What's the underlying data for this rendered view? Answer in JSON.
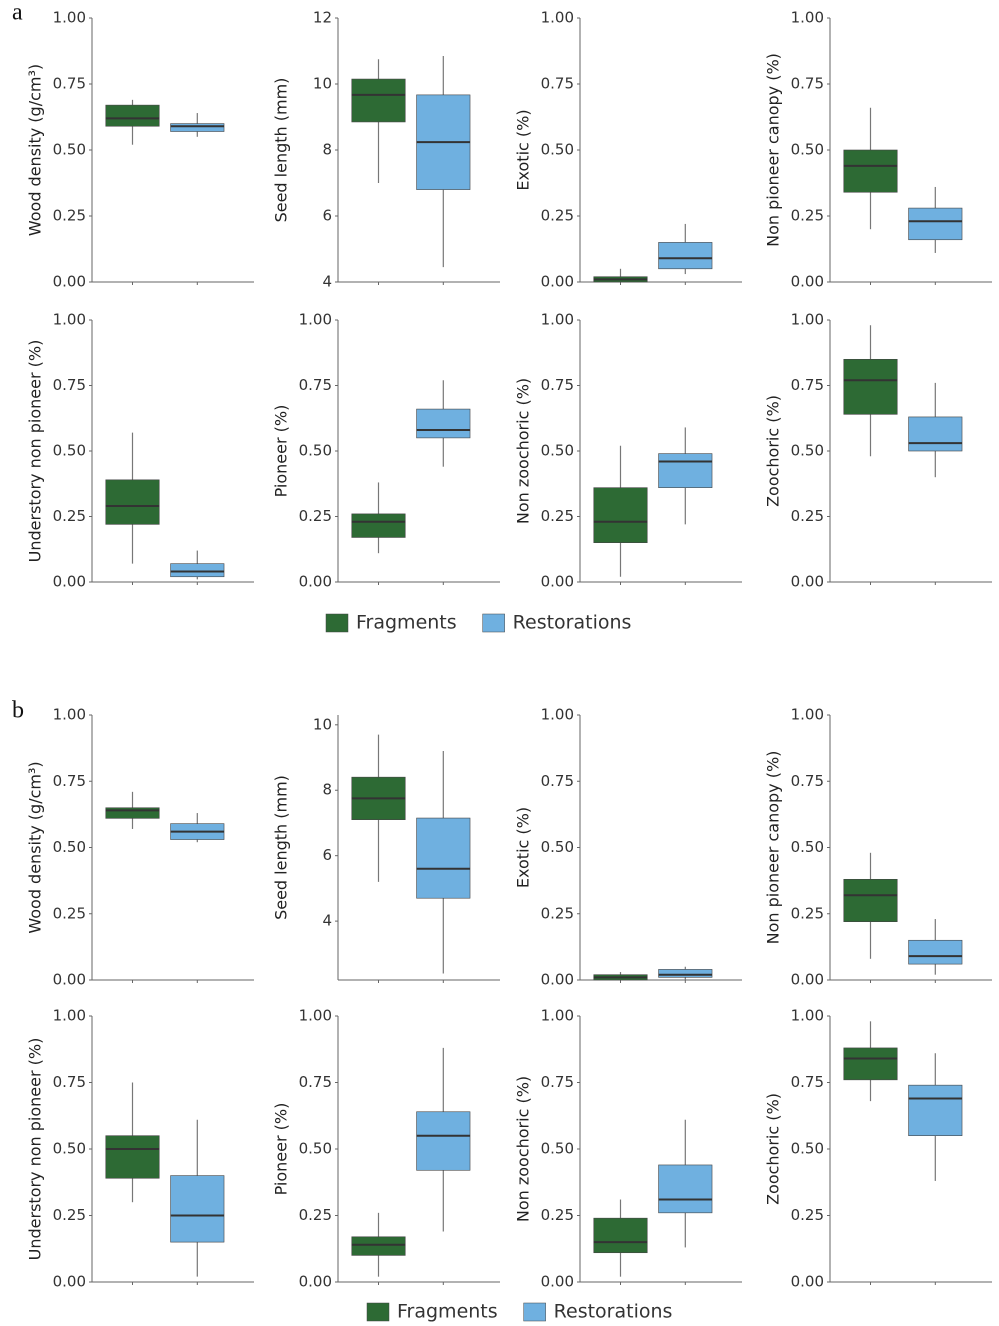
{
  "panel_labels": [
    "a",
    "b"
  ],
  "chart_data": [
    {
      "type": "box",
      "ylabel": "Wood density (g/cm³)",
      "ylim": [
        0,
        1
      ],
      "yticks": [
        {
          "value": 0,
          "label": "0.00"
        },
        {
          "value": 0.25,
          "label": "0.25"
        },
        {
          "value": 0.5,
          "label": "0.50"
        },
        {
          "value": 0.75,
          "label": "0.75"
        },
        {
          "value": 1,
          "label": "1.00"
        }
      ],
      "series": [
        {
          "name": "Fragments",
          "color": "#2d6a34",
          "min": 0.52,
          "q1": 0.59,
          "median": 0.62,
          "q3": 0.67,
          "max": 0.69
        },
        {
          "name": "Restorations",
          "color": "#6fb0e0",
          "min": 0.55,
          "q1": 0.57,
          "median": 0.59,
          "q3": 0.6,
          "max": 0.64
        }
      ]
    },
    {
      "type": "box",
      "ylabel": "Seed length (mm)",
      "ylim": [
        4,
        12
      ],
      "yticks": [
        4,
        6,
        8,
        10,
        12
      ],
      "series": [
        {
          "name": "Fragments",
          "color": "#2d6a34",
          "min": 7.0,
          "q1": 8.85,
          "median": 9.67,
          "q3": 10.15,
          "max": 10.75
        },
        {
          "name": "Restorations",
          "color": "#6fb0e0",
          "min": 4.45,
          "q1": 6.8,
          "median": 8.24,
          "q3": 9.67,
          "max": 10.85
        }
      ]
    },
    {
      "type": "box",
      "ylabel": "Exotic (%)",
      "ylim": [
        0,
        1
      ],
      "yticks": [
        {
          "value": 0,
          "label": "0.00"
        },
        {
          "value": 0.25,
          "label": "0.25"
        },
        {
          "value": 0.5,
          "label": "0.50"
        },
        {
          "value": 0.75,
          "label": "0.75"
        },
        {
          "value": 1,
          "label": "1.00"
        }
      ],
      "series": [
        {
          "name": "Fragments",
          "color": "#2d6a34",
          "min": 0,
          "q1": 0,
          "median": 0.01,
          "q3": 0.02,
          "max": 0.05
        },
        {
          "name": "Restorations",
          "color": "#6fb0e0",
          "min": 0.03,
          "q1": 0.05,
          "median": 0.09,
          "q3": 0.15,
          "max": 0.22
        }
      ]
    },
    {
      "type": "box",
      "ylabel": "Non pioneer canopy (%)",
      "ylim": [
        0,
        1
      ],
      "yticks": [
        {
          "value": 0,
          "label": "0.00"
        },
        {
          "value": 0.25,
          "label": "0.25"
        },
        {
          "value": 0.5,
          "label": "0.50"
        },
        {
          "value": 0.75,
          "label": "0.75"
        },
        {
          "value": 1,
          "label": "1.00"
        }
      ],
      "series": [
        {
          "name": "Fragments",
          "color": "#2d6a34",
          "min": 0.2,
          "q1": 0.34,
          "median": 0.44,
          "q3": 0.5,
          "max": 0.66
        },
        {
          "name": "Restorations",
          "color": "#6fb0e0",
          "min": 0.11,
          "q1": 0.16,
          "median": 0.23,
          "q3": 0.28,
          "max": 0.36
        }
      ]
    },
    {
      "type": "box",
      "ylabel": "Understory non pioneer (%)",
      "ylim": [
        0,
        1
      ],
      "yticks": [
        {
          "value": 0,
          "label": "0.00"
        },
        {
          "value": 0.25,
          "label": "0.25"
        },
        {
          "value": 0.5,
          "label": "0.50"
        },
        {
          "value": 0.75,
          "label": "0.75"
        },
        {
          "value": 1,
          "label": "1.00"
        }
      ],
      "series": [
        {
          "name": "Fragments",
          "color": "#2d6a34",
          "min": 0.07,
          "q1": 0.22,
          "median": 0.29,
          "q3": 0.39,
          "max": 0.57
        },
        {
          "name": "Restorations",
          "color": "#6fb0e0",
          "min": 0.01,
          "q1": 0.02,
          "median": 0.04,
          "q3": 0.07,
          "max": 0.12
        }
      ]
    },
    {
      "type": "box",
      "ylabel": "Pioneer (%)",
      "ylim": [
        0,
        1
      ],
      "yticks": [
        {
          "value": 0,
          "label": "0.00"
        },
        {
          "value": 0.25,
          "label": "0.25"
        },
        {
          "value": 0.5,
          "label": "0.50"
        },
        {
          "value": 0.75,
          "label": "0.75"
        },
        {
          "value": 1,
          "label": "1.00"
        }
      ],
      "series": [
        {
          "name": "Fragments",
          "color": "#2d6a34",
          "min": 0.11,
          "q1": 0.17,
          "median": 0.23,
          "q3": 0.26,
          "max": 0.38
        },
        {
          "name": "Restorations",
          "color": "#6fb0e0",
          "min": 0.44,
          "q1": 0.55,
          "median": 0.58,
          "q3": 0.66,
          "max": 0.77
        }
      ]
    },
    {
      "type": "box",
      "ylabel": "Non zoochoric (%)",
      "ylim": [
        0,
        1
      ],
      "yticks": [
        {
          "value": 0,
          "label": "0.00"
        },
        {
          "value": 0.25,
          "label": "0.25"
        },
        {
          "value": 0.5,
          "label": "0.50"
        },
        {
          "value": 0.75,
          "label": "0.75"
        },
        {
          "value": 1,
          "label": "1.00"
        }
      ],
      "series": [
        {
          "name": "Fragments",
          "color": "#2d6a34",
          "min": 0.02,
          "q1": 0.15,
          "median": 0.23,
          "q3": 0.36,
          "max": 0.52
        },
        {
          "name": "Restorations",
          "color": "#6fb0e0",
          "min": 0.22,
          "q1": 0.36,
          "median": 0.46,
          "q3": 0.49,
          "max": 0.59
        }
      ]
    },
    {
      "type": "box",
      "ylabel": "Zoochoric (%)",
      "ylim": [
        0,
        1
      ],
      "yticks": [
        {
          "value": 0,
          "label": "0.00"
        },
        {
          "value": 0.25,
          "label": "0.25"
        },
        {
          "value": 0.5,
          "label": "0.50"
        },
        {
          "value": 0.75,
          "label": "0.75"
        },
        {
          "value": 1,
          "label": "1.00"
        }
      ],
      "series": [
        {
          "name": "Fragments",
          "color": "#2d6a34",
          "min": 0.48,
          "q1": 0.64,
          "median": 0.77,
          "q3": 0.85,
          "max": 0.98
        },
        {
          "name": "Restorations",
          "color": "#6fb0e0",
          "min": 0.4,
          "q1": 0.5,
          "median": 0.53,
          "q3": 0.63,
          "max": 0.76
        }
      ]
    },
    {
      "type": "box",
      "ylabel": "Wood density (g/cm³)",
      "ylim": [
        0,
        1
      ],
      "yticks": [
        {
          "value": 0,
          "label": "0.00"
        },
        {
          "value": 0.25,
          "label": "0.25"
        },
        {
          "value": 0.5,
          "label": "0.50"
        },
        {
          "value": 0.75,
          "label": "0.75"
        },
        {
          "value": 1,
          "label": "1.00"
        }
      ],
      "series": [
        {
          "name": "Fragments",
          "color": "#2d6a34",
          "min": 0.57,
          "q1": 0.61,
          "median": 0.64,
          "q3": 0.65,
          "max": 0.71
        },
        {
          "name": "Restorations",
          "color": "#6fb0e0",
          "min": 0.52,
          "q1": 0.53,
          "median": 0.56,
          "q3": 0.59,
          "max": 0.63
        }
      ]
    },
    {
      "type": "box",
      "ylabel": "Seed length (mm)",
      "ylim": [
        2.2,
        10.3
      ],
      "yticks": [
        4,
        6,
        8,
        10
      ],
      "series": [
        {
          "name": "Fragments",
          "color": "#2d6a34",
          "min": 5.2,
          "q1": 7.1,
          "median": 7.75,
          "q3": 8.4,
          "max": 9.7
        },
        {
          "name": "Restorations",
          "color": "#6fb0e0",
          "min": 2.4,
          "q1": 4.7,
          "median": 5.6,
          "q3": 7.15,
          "max": 9.2
        }
      ]
    },
    {
      "type": "box",
      "ylabel": "Exotic (%)",
      "ylim": [
        0,
        1
      ],
      "yticks": [
        {
          "value": 0,
          "label": "0.00"
        },
        {
          "value": 0.25,
          "label": "0.25"
        },
        {
          "value": 0.5,
          "label": "0.50"
        },
        {
          "value": 0.75,
          "label": "0.75"
        },
        {
          "value": 1,
          "label": "1.00"
        }
      ],
      "series": [
        {
          "name": "Fragments",
          "color": "#2d6a34",
          "min": 0,
          "q1": 0,
          "median": 0.01,
          "q3": 0.02,
          "max": 0.03
        },
        {
          "name": "Restorations",
          "color": "#6fb0e0",
          "min": 0,
          "q1": 0.01,
          "median": 0.02,
          "q3": 0.04,
          "max": 0.05
        }
      ]
    },
    {
      "type": "box",
      "ylabel": "Non pioneer canopy (%)",
      "ylim": [
        0,
        1
      ],
      "yticks": [
        {
          "value": 0,
          "label": "0.00"
        },
        {
          "value": 0.25,
          "label": "0.25"
        },
        {
          "value": 0.5,
          "label": "0.50"
        },
        {
          "value": 0.75,
          "label": "0.75"
        },
        {
          "value": 1,
          "label": "1.00"
        }
      ],
      "series": [
        {
          "name": "Fragments",
          "color": "#2d6a34",
          "min": 0.08,
          "q1": 0.22,
          "median": 0.32,
          "q3": 0.38,
          "max": 0.48
        },
        {
          "name": "Restorations",
          "color": "#6fb0e0",
          "min": 0.02,
          "q1": 0.06,
          "median": 0.09,
          "q3": 0.15,
          "max": 0.23
        }
      ]
    },
    {
      "type": "box",
      "ylabel": "Understory non pioneer (%)",
      "ylim": [
        0,
        1
      ],
      "yticks": [
        {
          "value": 0,
          "label": "0.00"
        },
        {
          "value": 0.25,
          "label": "0.25"
        },
        {
          "value": 0.5,
          "label": "0.50"
        },
        {
          "value": 0.75,
          "label": "0.75"
        },
        {
          "value": 1,
          "label": "1.00"
        }
      ],
      "series": [
        {
          "name": "Fragments",
          "color": "#2d6a34",
          "min": 0.3,
          "q1": 0.39,
          "median": 0.5,
          "q3": 0.55,
          "max": 0.75
        },
        {
          "name": "Restorations",
          "color": "#6fb0e0",
          "min": 0.02,
          "q1": 0.15,
          "median": 0.25,
          "q3": 0.4,
          "max": 0.61
        }
      ]
    },
    {
      "type": "box",
      "ylabel": "Pioneer (%)",
      "ylim": [
        0,
        1
      ],
      "yticks": [
        {
          "value": 0,
          "label": "0.00"
        },
        {
          "value": 0.25,
          "label": "0.25"
        },
        {
          "value": 0.5,
          "label": "0.50"
        },
        {
          "value": 0.75,
          "label": "0.75"
        },
        {
          "value": 1,
          "label": "1.00"
        }
      ],
      "series": [
        {
          "name": "Fragments",
          "color": "#2d6a34",
          "min": 0.02,
          "q1": 0.1,
          "median": 0.14,
          "q3": 0.17,
          "max": 0.26
        },
        {
          "name": "Restorations",
          "color": "#6fb0e0",
          "min": 0.19,
          "q1": 0.42,
          "median": 0.55,
          "q3": 0.64,
          "max": 0.88
        }
      ]
    },
    {
      "type": "box",
      "ylabel": "Non zoochoric (%)",
      "ylim": [
        0,
        1
      ],
      "yticks": [
        {
          "value": 0,
          "label": "0.00"
        },
        {
          "value": 0.25,
          "label": "0.25"
        },
        {
          "value": 0.5,
          "label": "0.50"
        },
        {
          "value": 0.75,
          "label": "0.75"
        },
        {
          "value": 1,
          "label": "1.00"
        }
      ],
      "series": [
        {
          "name": "Fragments",
          "color": "#2d6a34",
          "min": 0.02,
          "q1": 0.11,
          "median": 0.15,
          "q3": 0.24,
          "max": 0.31
        },
        {
          "name": "Restorations",
          "color": "#6fb0e0",
          "min": 0.13,
          "q1": 0.26,
          "median": 0.31,
          "q3": 0.44,
          "max": 0.61
        }
      ]
    },
    {
      "type": "box",
      "ylabel": "Zoochoric (%)",
      "ylim": [
        0,
        1
      ],
      "yticks": [
        {
          "value": 0,
          "label": "0.00"
        },
        {
          "value": 0.25,
          "label": "0.25"
        },
        {
          "value": 0.5,
          "label": "0.50"
        },
        {
          "value": 0.75,
          "label": "0.75"
        },
        {
          "value": 1,
          "label": "1.00"
        }
      ],
      "series": [
        {
          "name": "Fragments",
          "color": "#2d6a34",
          "min": 0.68,
          "q1": 0.76,
          "median": 0.84,
          "q3": 0.88,
          "max": 0.98
        },
        {
          "name": "Restorations",
          "color": "#6fb0e0",
          "min": 0.38,
          "q1": 0.55,
          "median": 0.69,
          "q3": 0.74,
          "max": 0.86
        }
      ]
    }
  ]
}
